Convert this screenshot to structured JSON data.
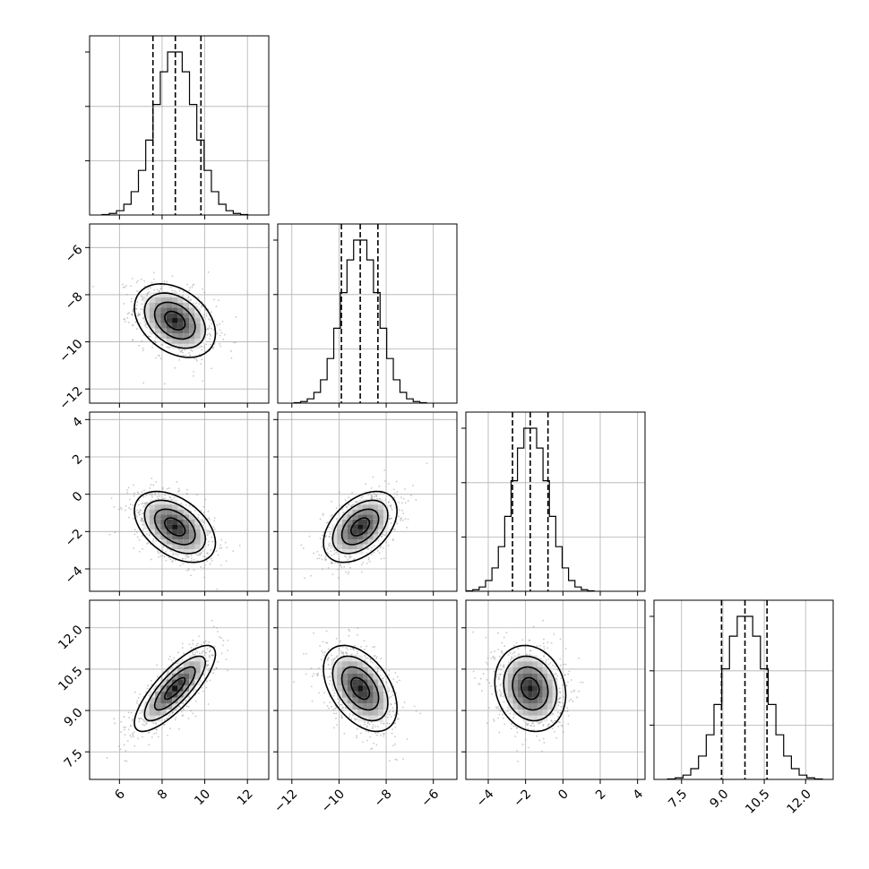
{
  "chart_data": {
    "type": "corner",
    "title": "",
    "n_params": 4,
    "grid": true,
    "colors": {
      "line": "#000000",
      "grid": "#b0b0b0",
      "points": "#9a9a9a"
    },
    "params": [
      {
        "index": 0,
        "range": [
          4.6,
          13.0
        ],
        "ticks": [
          6,
          8,
          10,
          12
        ],
        "tick_labels": [
          "6",
          "8",
          "10",
          "12"
        ],
        "mean": 8.6,
        "sd": 0.95,
        "quantiles": [
          7.57,
          8.62,
          9.82
        ]
      },
      {
        "index": 1,
        "range": [
          -12.6,
          -5.0
        ],
        "ticks": [
          -12,
          -10,
          -8,
          -6
        ],
        "tick_labels": [
          "−12",
          "−10",
          "−8",
          "−6"
        ],
        "mean": -9.1,
        "sd": 0.78,
        "quantiles": [
          -9.9,
          -9.1,
          -8.35
        ]
      },
      {
        "index": 2,
        "range": [
          -5.2,
          4.4
        ],
        "ticks": [
          -4,
          -2,
          0,
          2,
          4
        ],
        "tick_labels": [
          "−4",
          "−2",
          "0",
          "2",
          "4"
        ],
        "mean": -1.75,
        "sd": 0.95,
        "quantiles": [
          -2.7,
          -1.75,
          -0.8
        ]
      },
      {
        "index": 3,
        "range": [
          6.5,
          13.0
        ],
        "ticks": [
          7.5,
          9.0,
          10.5,
          12.0
        ],
        "tick_labels": [
          "7.5",
          "9.0",
          "10.5",
          "12.0"
        ],
        "mean": 9.8,
        "sd": 0.78,
        "quantiles": [
          8.95,
          9.8,
          10.6
        ]
      }
    ],
    "correlations": [
      {
        "pair": [
          0,
          1
        ],
        "rho": -0.35
      },
      {
        "pair": [
          0,
          2
        ],
        "rho": -0.45
      },
      {
        "pair": [
          1,
          2
        ],
        "rho": 0.45
      },
      {
        "pair": [
          0,
          3
        ],
        "rho": 0.8
      },
      {
        "pair": [
          1,
          3
        ],
        "rho": -0.45
      },
      {
        "pair": [
          2,
          3
        ],
        "rho": -0.15
      }
    ],
    "contour_levels_sigma": [
      0.5,
      1.0,
      1.5,
      2.0
    ],
    "histogram_bins": 20
  }
}
